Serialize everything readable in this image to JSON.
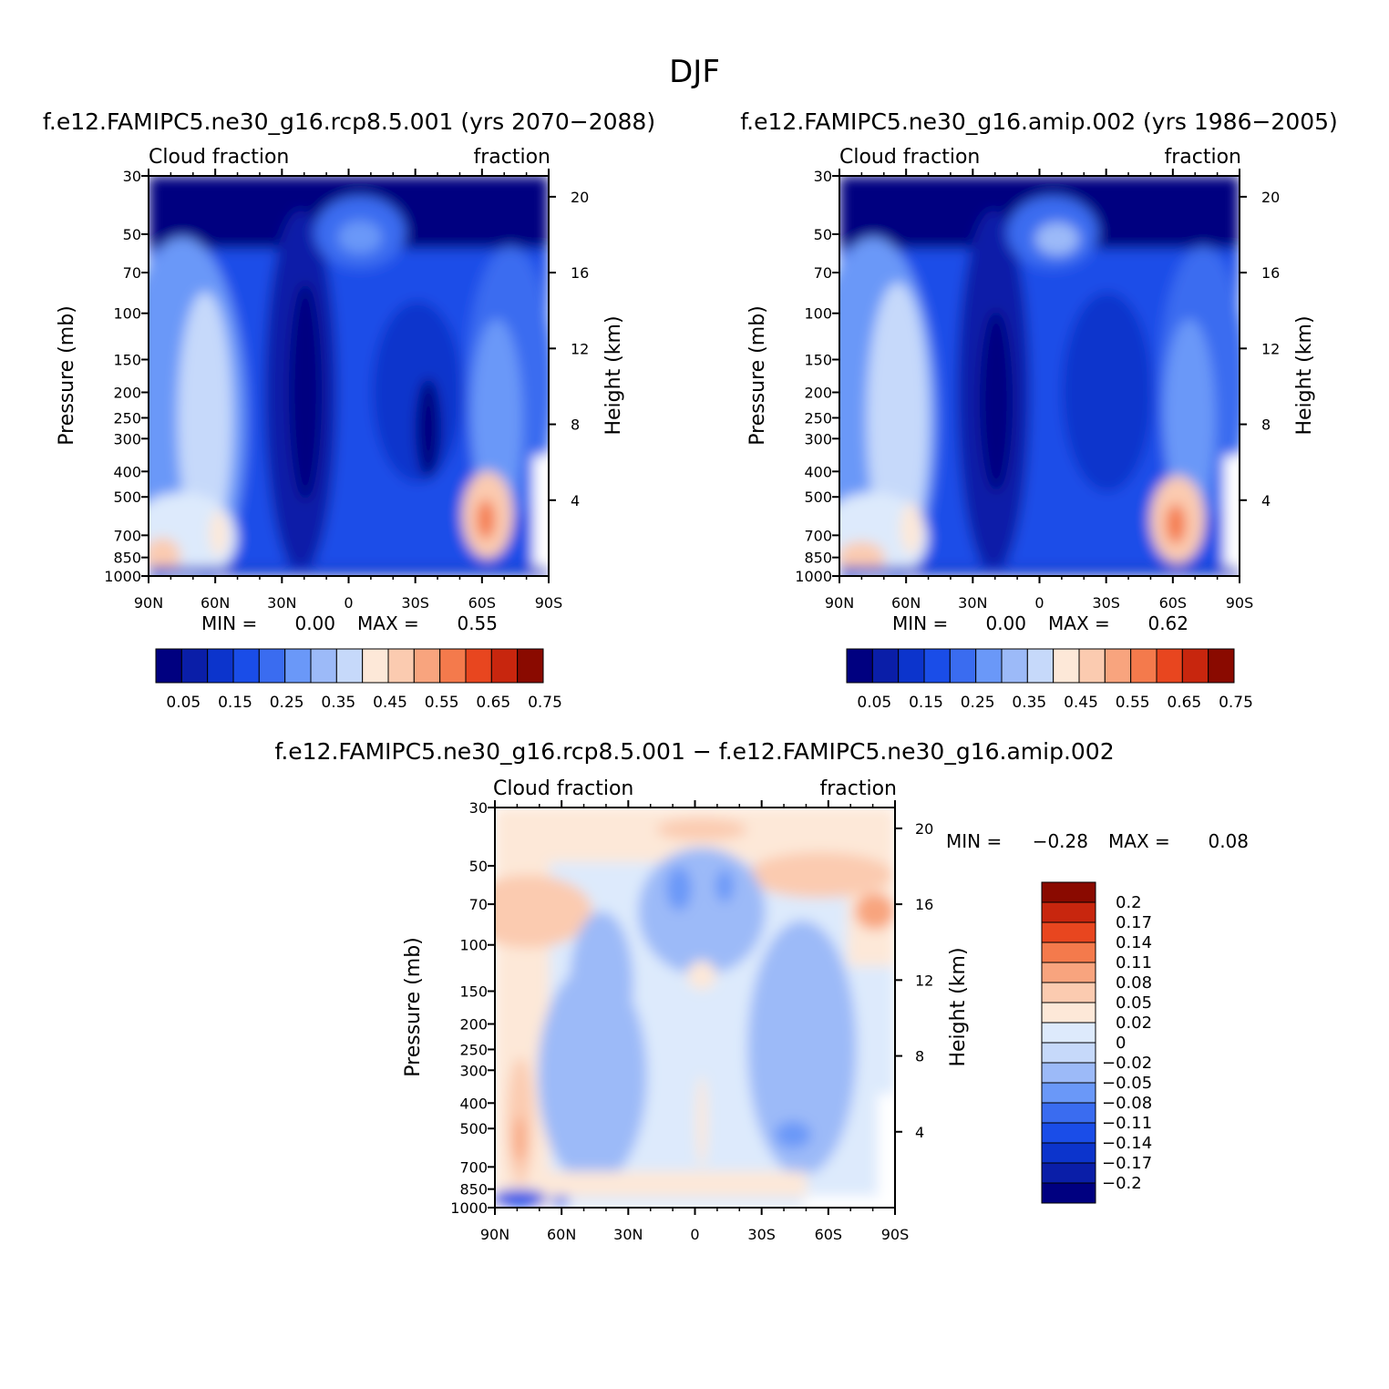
{
  "page_title": "DJF",
  "colors": {
    "blue_scale": [
      "#000080",
      "#0a1ea8",
      "#0c34cc",
      "#1a4de8",
      "#3a6cf0",
      "#6a98f8",
      "#9cbaf8",
      "#c6d9fa",
      "#ddeafc"
    ],
    "red_scale": [
      "#fde8d8",
      "#fbcbb0",
      "#f8a47e",
      "#f47a4c",
      "#e8461f",
      "#c8260e",
      "#8a0a00"
    ],
    "zero_white": "#ffffff"
  },
  "panels": [
    {
      "title": "f.e12.FAMIPC5.ne30_g16.rcp8.5.001 (yrs 2070−2088)",
      "left_label": "Cloud fraction",
      "right_label": "fraction",
      "ylabel": "Pressure (mb)",
      "y2label": "Height (km)",
      "stats": {
        "min_label": "MIN =",
        "min": "0.00",
        "max_label": "MAX =",
        "max": "0.55"
      },
      "colorbar_labels": [
        "0.05",
        "0.15",
        "0.25",
        "0.35",
        "0.45",
        "0.55",
        "0.65",
        "0.75"
      ]
    },
    {
      "title": "f.e12.FAMIPC5.ne30_g16.amip.002 (yrs 1986−2005)",
      "left_label": "Cloud fraction",
      "right_label": "fraction",
      "ylabel": "Pressure (mb)",
      "y2label": "Height (km)",
      "stats": {
        "min_label": "MIN =",
        "min": "0.00",
        "max_label": "MAX =",
        "max": "0.62"
      },
      "colorbar_labels": [
        "0.05",
        "0.15",
        "0.25",
        "0.35",
        "0.45",
        "0.55",
        "0.65",
        "0.75"
      ]
    },
    {
      "title": "f.e12.FAMIPC5.ne30_g16.rcp8.5.001 − f.e12.FAMIPC5.ne30_g16.amip.002",
      "left_label": "Cloud fraction",
      "right_label": "fraction",
      "ylabel": "Pressure (mb)",
      "y2label": "Height (km)",
      "stats": {
        "min_label": "MIN =",
        "min": "−0.28",
        "max_label": "MAX =",
        "max": "0.08"
      },
      "colorbar_labels": [
        "0.2",
        "0.17",
        "0.14",
        "0.11",
        "0.08",
        "0.05",
        "0.02",
        "0",
        "−0.02",
        "−0.05",
        "−0.08",
        "−0.11",
        "−0.14",
        "−0.17",
        "−0.2"
      ]
    }
  ],
  "chart_data": {
    "type": "heatmap",
    "title": "DJF",
    "subplots": [
      {
        "name": "rcp8.5 (yrs 2070-2088)",
        "xlabel": "",
        "ylabel": "Pressure (mb)",
        "y2label": "Height (km)",
        "x_ticks": [
          "90N",
          "60N",
          "30N",
          "0",
          "30S",
          "60S",
          "90S"
        ],
        "y_ticks": [
          "30",
          "50",
          "70",
          "100",
          "150",
          "200",
          "250",
          "300",
          "400",
          "500",
          "700",
          "850",
          "1000"
        ],
        "y2_ticks": [
          "20",
          "16",
          "12",
          "8",
          "4"
        ],
        "ylim": [
          1000,
          30
        ],
        "min": 0.0,
        "max": 0.55,
        "levels": [
          0.05,
          0.1,
          0.15,
          0.2,
          0.25,
          0.3,
          0.35,
          0.4,
          0.45,
          0.5,
          0.55,
          0.6,
          0.65,
          0.7,
          0.75
        ]
      },
      {
        "name": "amip (yrs 1986-2005)",
        "xlabel": "",
        "ylabel": "Pressure (mb)",
        "y2label": "Height (km)",
        "x_ticks": [
          "90N",
          "60N",
          "30N",
          "0",
          "30S",
          "60S",
          "90S"
        ],
        "y_ticks": [
          "30",
          "50",
          "70",
          "100",
          "150",
          "200",
          "250",
          "300",
          "400",
          "500",
          "700",
          "850",
          "1000"
        ],
        "y2_ticks": [
          "20",
          "16",
          "12",
          "8",
          "4"
        ],
        "ylim": [
          1000,
          30
        ],
        "min": 0.0,
        "max": 0.62,
        "levels": [
          0.05,
          0.1,
          0.15,
          0.2,
          0.25,
          0.3,
          0.35,
          0.4,
          0.45,
          0.5,
          0.55,
          0.6,
          0.65,
          0.7,
          0.75
        ]
      },
      {
        "name": "difference rcp8.5 - amip",
        "xlabel": "",
        "ylabel": "Pressure (mb)",
        "y2label": "Height (km)",
        "x_ticks": [
          "90N",
          "60N",
          "30N",
          "0",
          "30S",
          "60S",
          "90S"
        ],
        "y_ticks": [
          "30",
          "50",
          "70",
          "100",
          "150",
          "200",
          "250",
          "300",
          "400",
          "500",
          "700",
          "850",
          "1000"
        ],
        "y2_ticks": [
          "20",
          "16",
          "12",
          "8",
          "4"
        ],
        "ylim": [
          1000,
          30
        ],
        "min": -0.28,
        "max": 0.08,
        "levels": [
          -0.2,
          -0.17,
          -0.14,
          -0.11,
          -0.08,
          -0.05,
          -0.02,
          0,
          0.02,
          0.05,
          0.08,
          0.11,
          0.14,
          0.17,
          0.2
        ]
      }
    ]
  }
}
